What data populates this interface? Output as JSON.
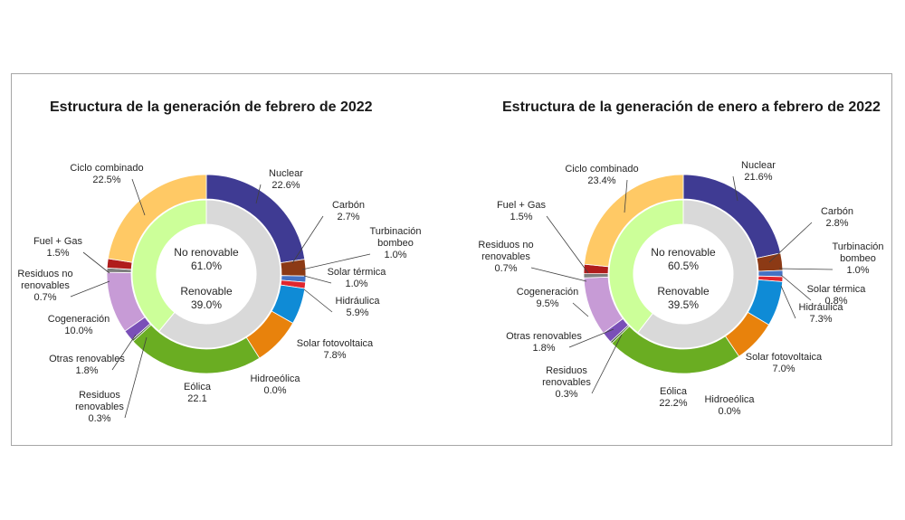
{
  "chart_data": [
    {
      "type": "donut",
      "title": "Estructura de la generación de febrero de 2022",
      "inner": [
        {
          "name": "No renovable",
          "value": "61.0%",
          "pct": 61.0,
          "color": "#d9d9d9"
        },
        {
          "name": "Renovable",
          "value": "39.0%",
          "pct": 39.0,
          "color": "#ccff99"
        }
      ],
      "outer": [
        {
          "name": "Nuclear",
          "value": "22.6%",
          "pct": 22.6,
          "color": "#3f3b93"
        },
        {
          "name": "Carbón",
          "value": "2.7%",
          "pct": 2.7,
          "color": "#8c3a15"
        },
        {
          "name": "Turbinación bombeo",
          "value": "1.0%",
          "pct": 1.0,
          "color": "#4472c4"
        },
        {
          "name": "Solar térmica",
          "value": "1.0%",
          "pct": 1.0,
          "color": "#e0262e"
        },
        {
          "name": "Hidráulica",
          "value": "5.9%",
          "pct": 5.9,
          "color": "#0f8bd6"
        },
        {
          "name": "Solar fotovoltaica",
          "value": "7.8%",
          "pct": 7.8,
          "color": "#e8820c"
        },
        {
          "name": "Hidroeólica",
          "value": "0.0%",
          "pct": 0.0,
          "color": "#7030a0"
        },
        {
          "name": "Eólica",
          "value": "22.1",
          "pct": 22.1,
          "color": "#6aad22"
        },
        {
          "name": "Residuos renovables",
          "value": "0.3%",
          "pct": 0.3,
          "color": "#375623"
        },
        {
          "name": "Otras renovables",
          "value": "1.8%",
          "pct": 1.8,
          "color": "#7a4fb8"
        },
        {
          "name": "Cogeneración",
          "value": "10.0%",
          "pct": 10.0,
          "color": "#c79bd6"
        },
        {
          "name": "Residuos no renovables",
          "value": "0.7%",
          "pct": 0.7,
          "color": "#7f7f7f"
        },
        {
          "name": "Fuel + Gas",
          "value": "1.5%",
          "pct": 1.5,
          "color": "#b01c1c"
        },
        {
          "name": "Ciclo combinado",
          "value": "22.5%",
          "pct": 22.5,
          "color": "#ffc965"
        }
      ]
    },
    {
      "type": "donut",
      "title": "Estructura de la generación de enero a febrero de 2022",
      "inner": [
        {
          "name": "No renovable",
          "value": "60.5%",
          "pct": 60.5,
          "color": "#d9d9d9"
        },
        {
          "name": "Renovable",
          "value": "39.5%",
          "pct": 39.5,
          "color": "#ccff99"
        }
      ],
      "outer": [
        {
          "name": "Nuclear",
          "value": "21.6%",
          "pct": 21.6,
          "color": "#3f3b93"
        },
        {
          "name": "Carbón",
          "value": "2.8%",
          "pct": 2.8,
          "color": "#8c3a15"
        },
        {
          "name": "Turbinación bombeo",
          "value": "1.0%",
          "pct": 1.0,
          "color": "#4472c4"
        },
        {
          "name": "Solar térmica",
          "value": "0.8%",
          "pct": 0.8,
          "color": "#e0262e"
        },
        {
          "name": "Hidráulica",
          "value": "7.3%",
          "pct": 7.3,
          "color": "#0f8bd6"
        },
        {
          "name": "Solar fotovoltaica",
          "value": "7.0%",
          "pct": 7.0,
          "color": "#e8820c"
        },
        {
          "name": "Hidroeólica",
          "value": "0.0%",
          "pct": 0.0,
          "color": "#7030a0"
        },
        {
          "name": "Eólica",
          "value": "22.2%",
          "pct": 22.2,
          "color": "#6aad22"
        },
        {
          "name": "Residuos renovables",
          "value": "0.3%",
          "pct": 0.3,
          "color": "#375623"
        },
        {
          "name": "Otras renovables",
          "value": "1.8%",
          "pct": 1.8,
          "color": "#7a4fb8"
        },
        {
          "name": "Cogeneración",
          "value": "9.5%",
          "pct": 9.5,
          "color": "#c79bd6"
        },
        {
          "name": "Residuos no renovables",
          "value": "0.7%",
          "pct": 0.7,
          "color": "#7f7f7f"
        },
        {
          "name": "Fuel + Gas",
          "value": "1.5%",
          "pct": 1.5,
          "color": "#b01c1c"
        },
        {
          "name": "Ciclo combinado",
          "value": "23.4%",
          "pct": 23.4,
          "color": "#ffc965"
        }
      ]
    }
  ]
}
